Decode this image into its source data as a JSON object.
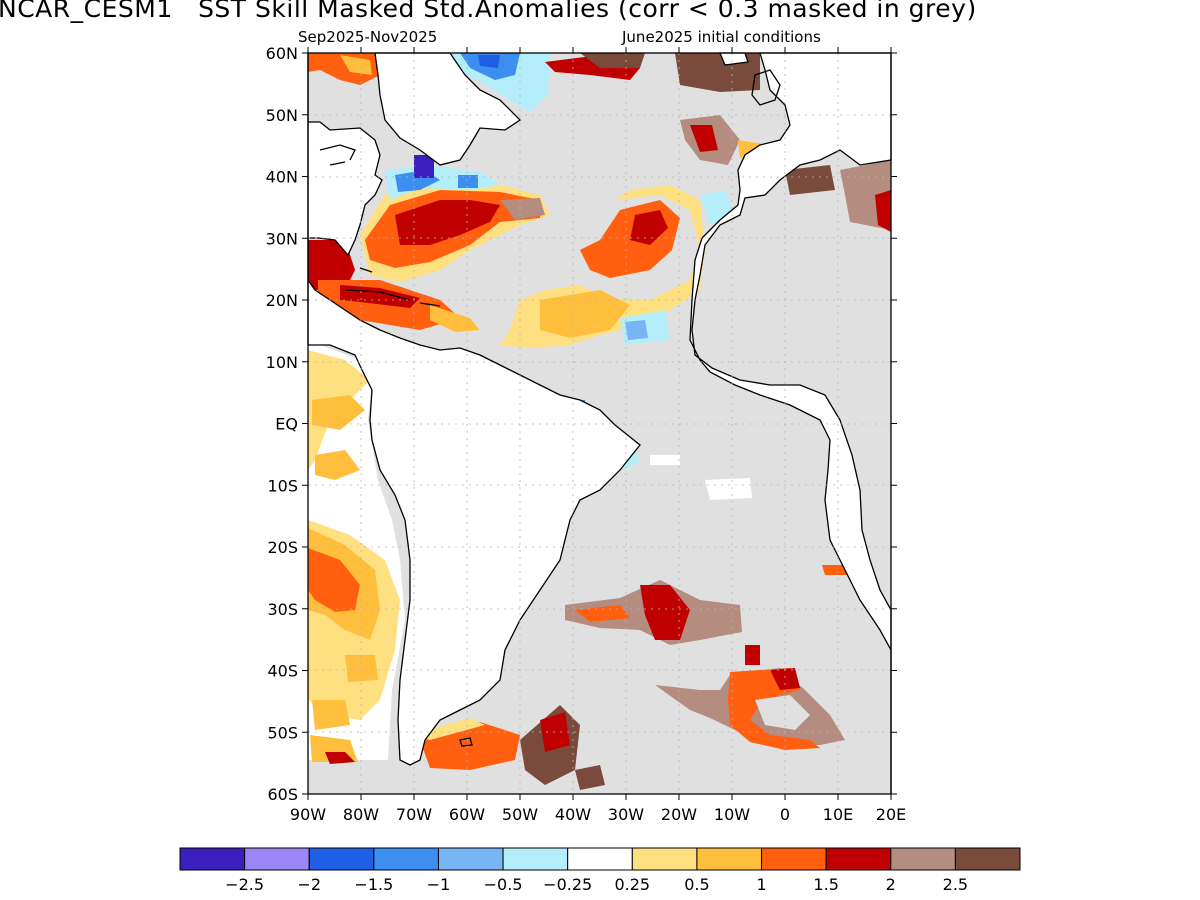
{
  "title": "NCAR_CESM1   SST Skill Masked Std.Anomalies (corr < 0.3 masked in grey)",
  "subtitle_left": "Sep2025-Nov2025",
  "subtitle_right": "June2025 initial conditions",
  "lat_labels": [
    "60N",
    "50N",
    "40N",
    "30N",
    "20N",
    "10N",
    "EQ",
    "10S",
    "20S",
    "30S",
    "40S",
    "50S",
    "60S"
  ],
  "lon_labels": [
    "90W",
    "80W",
    "70W",
    "60W",
    "50W",
    "40W",
    "30W",
    "20W",
    "10W",
    "0",
    "10E",
    "20E"
  ],
  "colorbar": {
    "colors": [
      "#3a1fbd",
      "#9b86f5",
      "#1f5fe6",
      "#3c8ef0",
      "#78b5f5",
      "#b4eefa",
      "#ffffff",
      "#ffe080",
      "#ffbf3c",
      "#ff5f0f",
      "#c00000",
      "#b48c80",
      "#7a4a3d"
    ],
    "labels": [
      "-2.5",
      "-2",
      "-1.5",
      "-1",
      "-0.5",
      "-0.25",
      "0.25",
      "0.5",
      "1",
      "1.5",
      "2",
      "2.5"
    ]
  },
  "colors": {
    "masked_grey": "#e0e0e0",
    "land": "#ffffff",
    "coast": "#000000",
    "grid": "#b4b4b4"
  }
}
